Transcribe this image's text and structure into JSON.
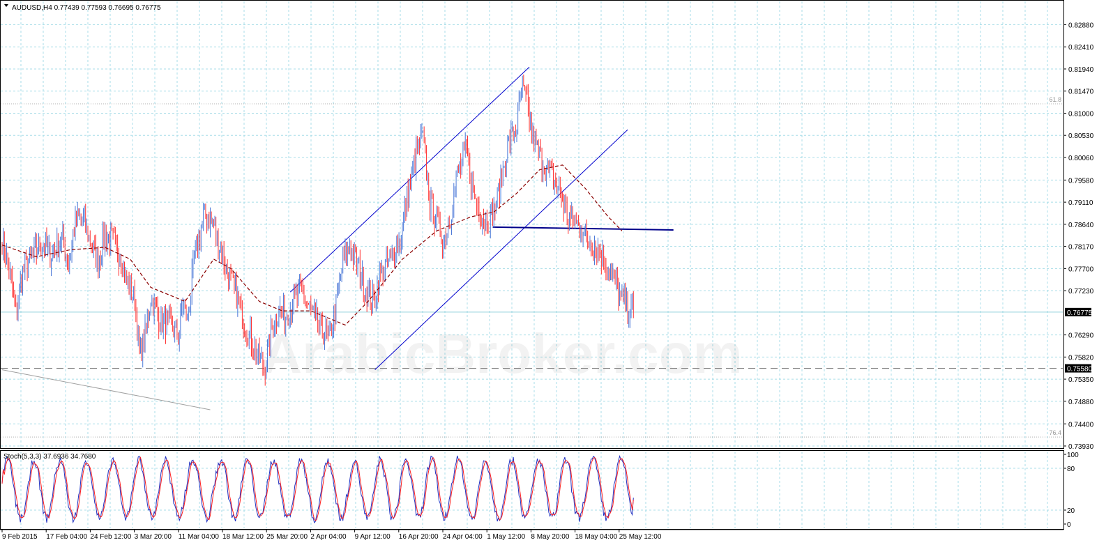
{
  "chart_data": [
    {
      "type": "candlestick",
      "header": {
        "symbol": "AUDUSD,H4",
        "ohlc": "0.77439 0.77593 0.76695 0.76775"
      },
      "ylim": [
        0.7393,
        0.8305
      ],
      "y_ticks": [
        "0.82880",
        "0.82410",
        "0.81940",
        "0.81470",
        "0.81000",
        "0.80530",
        "0.80060",
        "0.79580",
        "0.79110",
        "0.78640",
        "0.78170",
        "0.77700",
        "0.77230",
        "0.76290",
        "0.75820",
        "0.75350",
        "0.74880",
        "0.74400",
        "0.73930"
      ],
      "current_price": "0.76775",
      "support_level": "0.75580",
      "fib_labels": [
        "61.8",
        "76.4"
      ],
      "fib_levels": [
        0.812,
        0.7412
      ],
      "x_labels": [
        "9 Feb 2015",
        "17 Feb 04:00",
        "24 Feb 12:00",
        "3 Mar 20:00",
        "11 Mar 04:00",
        "18 Mar 12:00",
        "25 Mar 20:00",
        "2 Apr 04:00",
        "9 Apr 12:00",
        "16 Apr 20:00",
        "24 Apr 04:00",
        "1 May 12:00",
        "8 May 20:00",
        "18 May 04:00",
        "25 May 12:00"
      ],
      "colors": {
        "up": "#4a78d8",
        "down": "#ff3030",
        "ma": "#8b0000",
        "channel": "#0000cd",
        "hline": "#00008b",
        "grid": "#a8dde8"
      },
      "waypoints": [
        [
          0,
          0.7832
        ],
        [
          6,
          0.777
        ],
        [
          12,
          0.768
        ],
        [
          18,
          0.776
        ],
        [
          26,
          0.7795
        ],
        [
          36,
          0.7825
        ],
        [
          42,
          0.78
        ],
        [
          52,
          0.7835
        ],
        [
          58,
          0.778
        ],
        [
          64,
          0.787
        ],
        [
          70,
          0.788
        ],
        [
          78,
          0.782
        ],
        [
          84,
          0.7785
        ],
        [
          90,
          0.784
        ],
        [
          98,
          0.7825
        ],
        [
          104,
          0.779
        ],
        [
          110,
          0.7735
        ],
        [
          116,
          0.7705
        ],
        [
          120,
          0.759
        ],
        [
          124,
          0.761
        ],
        [
          130,
          0.771
        ],
        [
          138,
          0.766
        ],
        [
          146,
          0.765
        ],
        [
          154,
          0.7625
        ],
        [
          158,
          0.77
        ],
        [
          162,
          0.766
        ],
        [
          168,
          0.7785
        ],
        [
          176,
          0.788
        ],
        [
          184,
          0.787
        ],
        [
          190,
          0.782
        ],
        [
          196,
          0.777
        ],
        [
          204,
          0.772
        ],
        [
          208,
          0.769
        ],
        [
          212,
          0.765
        ],
        [
          218,
          0.762
        ],
        [
          224,
          0.758
        ],
        [
          230,
          0.756
        ],
        [
          236,
          0.764
        ],
        [
          242,
          0.7685
        ],
        [
          248,
          0.7665
        ],
        [
          254,
          0.77
        ],
        [
          262,
          0.772
        ],
        [
          268,
          0.769
        ],
        [
          274,
          0.766
        ],
        [
          280,
          0.764
        ],
        [
          286,
          0.762
        ],
        [
          292,
          0.769
        ],
        [
          298,
          0.778
        ],
        [
          304,
          0.782
        ],
        [
          312,
          0.777
        ],
        [
          318,
          0.772
        ],
        [
          324,
          0.77
        ],
        [
          330,
          0.775
        ],
        [
          336,
          0.778
        ],
        [
          342,
          0.78
        ],
        [
          348,
          0.783
        ],
        [
          354,
          0.792
        ],
        [
          362,
          0.801
        ],
        [
          368,
          0.805
        ],
        [
          374,
          0.791
        ],
        [
          380,
          0.787
        ],
        [
          386,
          0.783
        ],
        [
          392,
          0.788
        ],
        [
          398,
          0.797
        ],
        [
          406,
          0.802
        ],
        [
          412,
          0.793
        ],
        [
          418,
          0.789
        ],
        [
          424,
          0.787
        ],
        [
          430,
          0.789
        ],
        [
          436,
          0.795
        ],
        [
          442,
          0.803
        ],
        [
          450,
          0.807
        ],
        [
          454,
          0.815
        ],
        [
          458,
          0.813
        ],
        [
          464,
          0.805
        ],
        [
          470,
          0.801
        ],
        [
          476,
          0.798
        ],
        [
          482,
          0.796
        ],
        [
          488,
          0.793
        ],
        [
          494,
          0.788
        ],
        [
          500,
          0.787
        ],
        [
          506,
          0.786
        ],
        [
          512,
          0.783
        ],
        [
          518,
          0.782
        ],
        [
          524,
          0.78
        ],
        [
          530,
          0.777
        ],
        [
          536,
          0.774
        ],
        [
          542,
          0.77
        ],
        [
          548,
          0.7685
        ],
        [
          552,
          0.7678
        ]
      ],
      "ma_points": [
        [
          0,
          0.782
        ],
        [
          30,
          0.7795
        ],
        [
          60,
          0.781
        ],
        [
          90,
          0.7815
        ],
        [
          112,
          0.779
        ],
        [
          130,
          0.773
        ],
        [
          160,
          0.77
        ],
        [
          185,
          0.779
        ],
        [
          200,
          0.777
        ],
        [
          225,
          0.77
        ],
        [
          245,
          0.768
        ],
        [
          270,
          0.768
        ],
        [
          300,
          0.765
        ],
        [
          320,
          0.77
        ],
        [
          350,
          0.779
        ],
        [
          380,
          0.785
        ],
        [
          410,
          0.788
        ],
        [
          430,
          0.789
        ],
        [
          450,
          0.793
        ],
        [
          470,
          0.798
        ],
        [
          490,
          0.799
        ],
        [
          510,
          0.794
        ],
        [
          530,
          0.788
        ],
        [
          542,
          0.785
        ]
      ],
      "stochastic": {
        "label": "Stoch(5,3,3) 37.6936 34.7680",
        "y_ticks": [
          "100",
          "80",
          "20",
          "0"
        ],
        "ylim": [
          0,
          100
        ]
      }
    }
  ]
}
